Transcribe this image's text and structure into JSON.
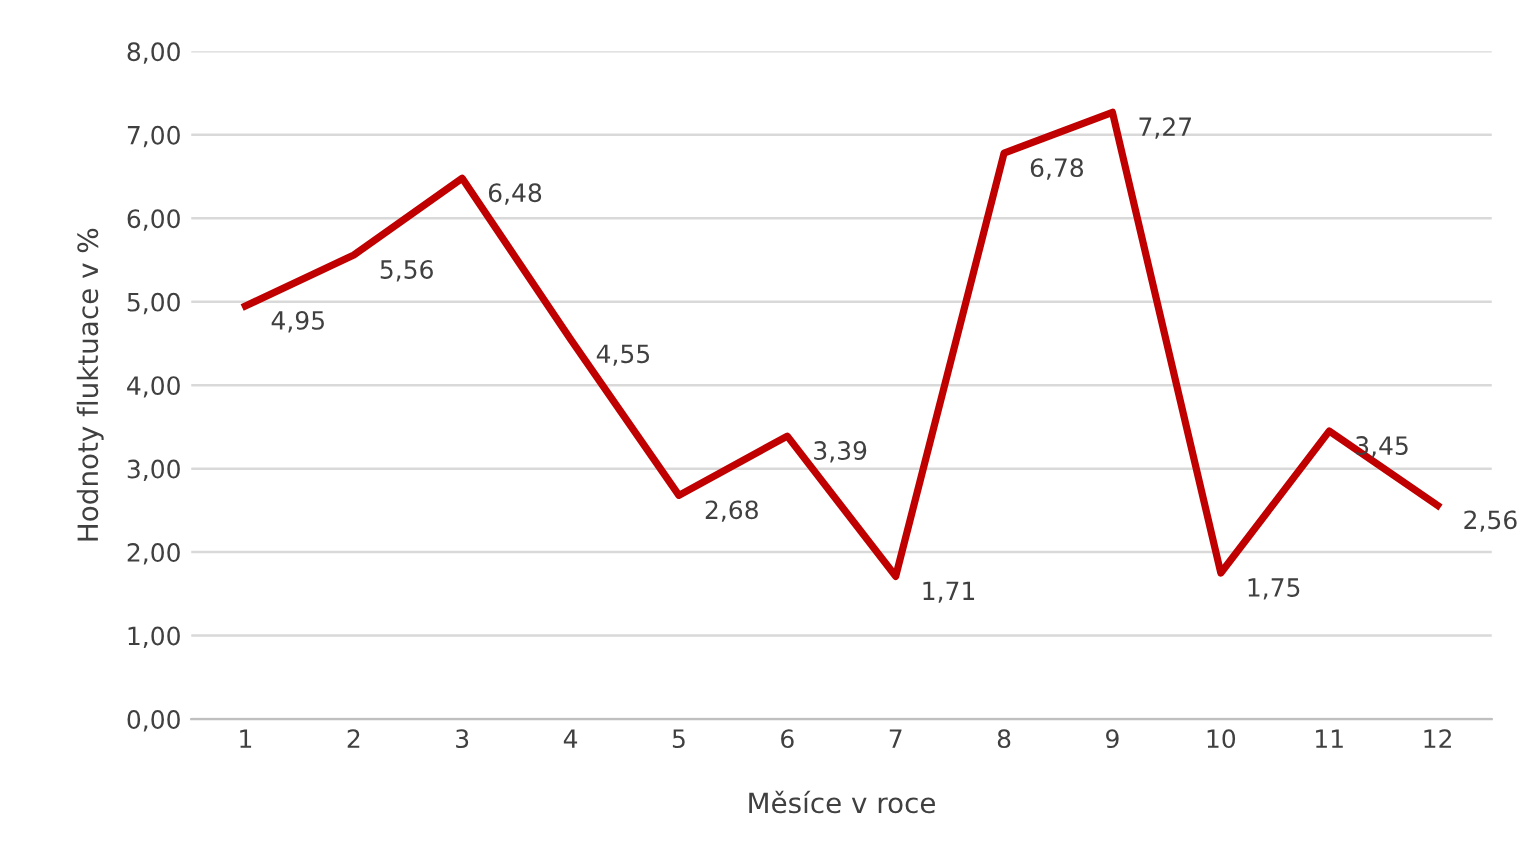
{
  "chart_data": {
    "type": "line",
    "xlabel": "Měsíce v roce",
    "ylabel": "Hodnoty fluktuace v %",
    "categories": [
      "1",
      "2",
      "3",
      "4",
      "5",
      "6",
      "7",
      "8",
      "9",
      "10",
      "11",
      "12"
    ],
    "series": [
      {
        "color": "#c00000",
        "values": [
          4.95,
          5.56,
          6.48,
          4.55,
          2.68,
          3.39,
          1.71,
          6.78,
          7.27,
          1.75,
          3.45,
          2.56
        ],
        "value_labels": [
          "4,95",
          "5,56",
          "6,48",
          "4,55",
          "2,68",
          "3,39",
          "1,71",
          "6,78",
          "7,27",
          "1,75",
          "3,45",
          "2,56"
        ]
      }
    ],
    "ylim": [
      0,
      8
    ],
    "yticks": [
      {
        "value": 0,
        "label": "0,00"
      },
      {
        "value": 1,
        "label": "1,00"
      },
      {
        "value": 2,
        "label": "2,00"
      },
      {
        "value": 3,
        "label": "3,00"
      },
      {
        "value": 4,
        "label": "4,00"
      },
      {
        "value": 5,
        "label": "5,00"
      },
      {
        "value": 6,
        "label": "6,00"
      },
      {
        "value": 7,
        "label": "7,00"
      },
      {
        "value": 8,
        "label": "8,00"
      }
    ],
    "grid": "y",
    "legend": false,
    "marker": "none",
    "line_style": "solid"
  }
}
